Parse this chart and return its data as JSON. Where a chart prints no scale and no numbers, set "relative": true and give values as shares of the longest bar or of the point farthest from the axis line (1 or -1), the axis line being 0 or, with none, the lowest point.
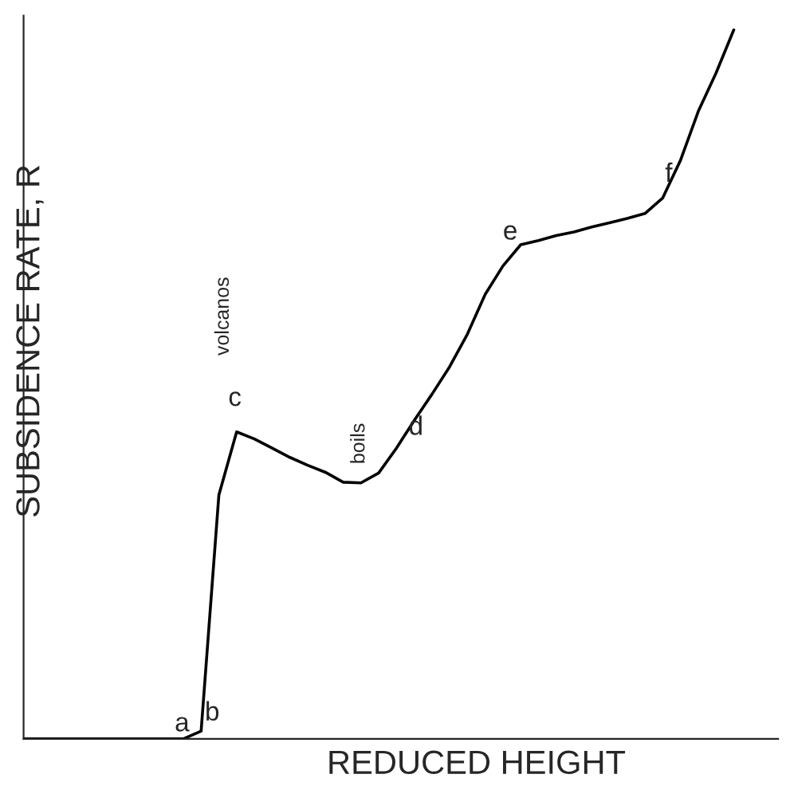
{
  "chart_data": {
    "type": "line",
    "relative": true,
    "xlabel": "REDUCED HEIGHT",
    "ylabel": "SUBSIDENCE RATE, R",
    "color": "#000000",
    "categories": [
      null,
      null,
      null,
      null,
      null,
      null,
      null,
      null,
      null,
      null,
      null,
      null,
      null,
      null,
      null,
      null,
      null,
      null,
      null,
      null,
      null,
      null,
      null,
      null,
      null,
      null,
      null,
      null,
      null,
      null,
      null,
      null,
      null,
      null,
      null,
      null,
      null,
      null,
      null,
      null,
      null
    ],
    "values": [
      0,
      0,
      0,
      0,
      0,
      0,
      0,
      0,
      0,
      0,
      0.011,
      0.344,
      0.433,
      0.423,
      0.41,
      0.397,
      0.386,
      0.376,
      0.362,
      0.361,
      0.375,
      0.41,
      0.449,
      0.486,
      0.525,
      0.571,
      0.627,
      0.667,
      0.697,
      0.703,
      0.71,
      0.715,
      0.722,
      0.728,
      0.734,
      0.741,
      0.763,
      0.816,
      0.885,
      0.939,
      1.0
    ],
    "annotations": [
      "a",
      "b",
      "c",
      "d",
      "e",
      "f",
      "volcanos",
      "boils"
    ]
  }
}
